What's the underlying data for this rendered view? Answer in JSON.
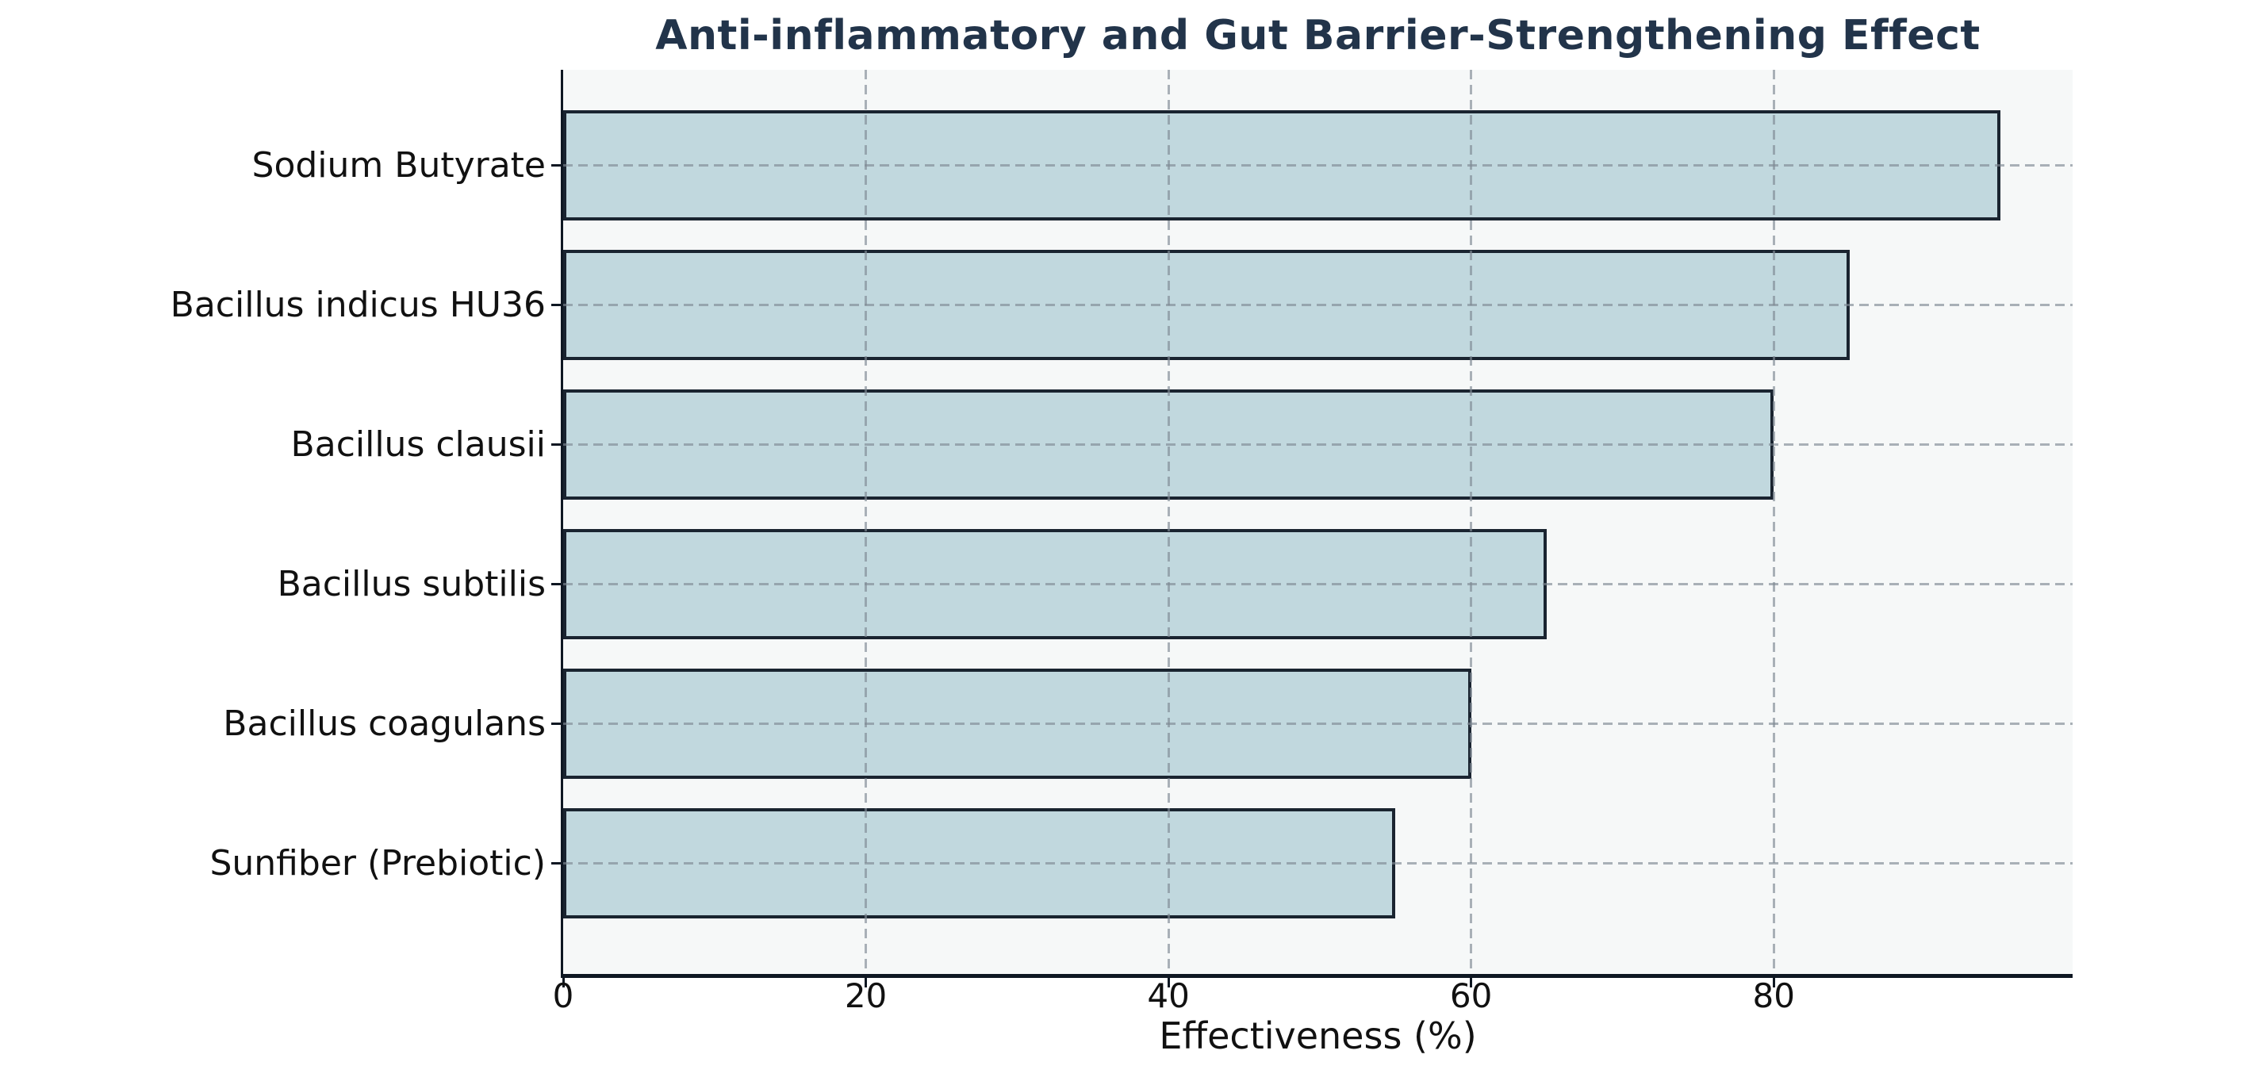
{
  "chart_data": {
    "type": "bar",
    "orientation": "horizontal",
    "title": "Anti-inflammatory and Gut Barrier-Strengthening Effect",
    "xlabel": "Effectiveness (%)",
    "categories": [
      "Sodium Butyrate",
      "Bacillus indicus HU36",
      "Bacillus clausii",
      "Bacillus subtilis",
      "Bacillus coagulans",
      "Sunfiber (Prebiotic)"
    ],
    "values": [
      95,
      85,
      80,
      65,
      60,
      55
    ],
    "xticks": [
      0,
      20,
      40,
      60,
      80
    ],
    "xlim": [
      0,
      99.75
    ],
    "grid": {
      "x": true,
      "y": true,
      "style": "dashed"
    },
    "legend": "none",
    "colors": {
      "bar_fill": "#c1d8de",
      "bar_edge": "#1a2430",
      "title": "#22344a",
      "grid": "#7f8a94",
      "axis": "#0e1722",
      "plot_bg": "#f6f8f8",
      "figure_bg": "#ffffff",
      "text": "#111111"
    }
  }
}
